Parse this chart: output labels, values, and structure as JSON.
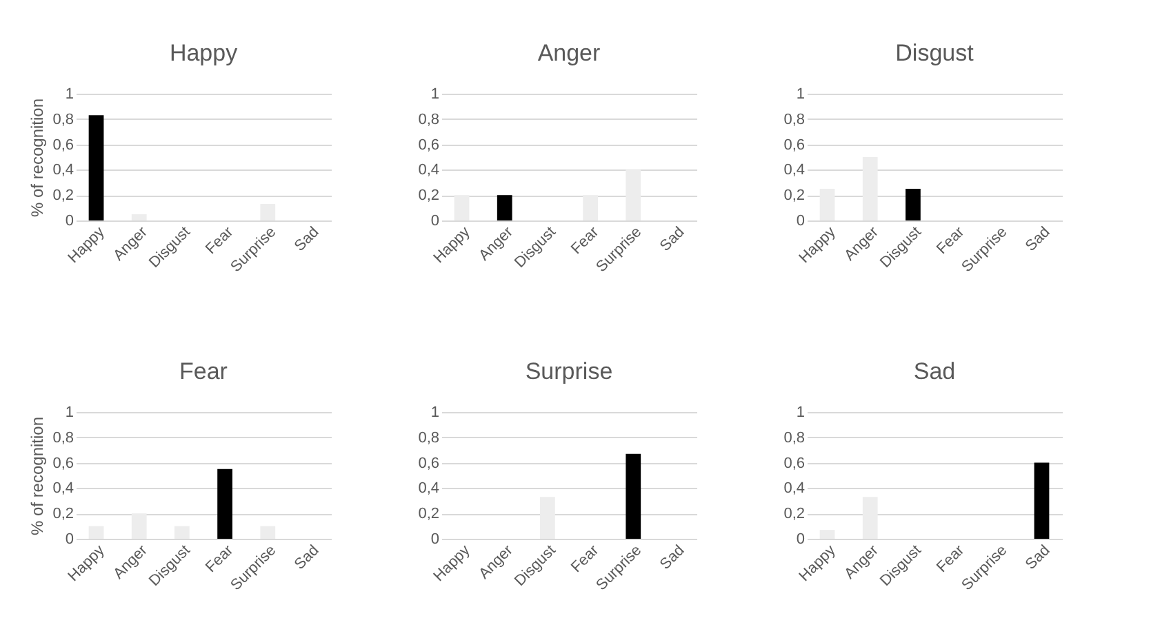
{
  "chart_data": [
    {
      "type": "bar",
      "title": "Happy",
      "ylabel": "% of recognition",
      "categories": [
        "Happy",
        "Anger",
        "Disgust",
        "Fear",
        "Surprise",
        "Sad"
      ],
      "values": [
        0.83,
        0.05,
        0,
        0,
        0.13,
        0
      ],
      "colors": [
        "#000000",
        "#ededed",
        "#ededed",
        "#ededed",
        "#ededed",
        "#ededed"
      ],
      "ylim": [
        0,
        1
      ],
      "yticks": [
        {
          "value": 0,
          "label": "0"
        },
        {
          "value": 0.2,
          "label": "0,2"
        },
        {
          "value": 0.4,
          "label": "0,4"
        },
        {
          "value": 0.6,
          "label": "0,6"
        },
        {
          "value": 0.8,
          "label": "0,8"
        },
        {
          "value": 1,
          "label": "1"
        }
      ],
      "grid": "y"
    },
    {
      "type": "bar",
      "title": "Anger",
      "categories": [
        "Happy",
        "Anger",
        "Disgust",
        "Fear",
        "Surprise",
        "Sad"
      ],
      "values": [
        0.2,
        0.2,
        0,
        0.2,
        0.4,
        0
      ],
      "colors": [
        "#ededed",
        "#000000",
        "#ededed",
        "#ededed",
        "#ededed",
        "#ededed"
      ],
      "ylim": [
        0,
        1
      ],
      "yticks": [
        {
          "value": 0,
          "label": "0"
        },
        {
          "value": 0.2,
          "label": "0,2"
        },
        {
          "value": 0.4,
          "label": "0,4"
        },
        {
          "value": 0.6,
          "label": "0,6"
        },
        {
          "value": 0.8,
          "label": "0,8"
        },
        {
          "value": 1,
          "label": "1"
        }
      ],
      "grid": "y"
    },
    {
      "type": "bar",
      "title": "Disgust",
      "categories": [
        "Happy",
        "Anger",
        "Disgust",
        "Fear",
        "Surprise",
        "Sad"
      ],
      "values": [
        0.25,
        0.5,
        0.25,
        0,
        0,
        0
      ],
      "colors": [
        "#ededed",
        "#ededed",
        "#000000",
        "#ededed",
        "#ededed",
        "#ededed"
      ],
      "ylim": [
        0,
        1
      ],
      "yticks": [
        {
          "value": 0,
          "label": "0"
        },
        {
          "value": 0.2,
          "label": "0,2"
        },
        {
          "value": 0.4,
          "label": "0,4"
        },
        {
          "value": 0.6,
          "label": "0,6"
        },
        {
          "value": 0.8,
          "label": "0,8"
        },
        {
          "value": 1,
          "label": "1"
        }
      ],
      "grid": "y"
    },
    {
      "type": "bar",
      "title": "Fear",
      "ylabel": "% of recognition",
      "categories": [
        "Happy",
        "Anger",
        "Disgust",
        "Fear",
        "Surprise",
        "Sad"
      ],
      "values": [
        0.1,
        0.2,
        0.1,
        0.55,
        0.1,
        0
      ],
      "colors": [
        "#ededed",
        "#ededed",
        "#ededed",
        "#000000",
        "#ededed",
        "#ededed"
      ],
      "ylim": [
        0,
        1
      ],
      "yticks": [
        {
          "value": 0,
          "label": "0"
        },
        {
          "value": 0.2,
          "label": "0,2"
        },
        {
          "value": 0.4,
          "label": "0,4"
        },
        {
          "value": 0.6,
          "label": "0,6"
        },
        {
          "value": 0.8,
          "label": "0,8"
        },
        {
          "value": 1,
          "label": "1"
        }
      ],
      "grid": "y"
    },
    {
      "type": "bar",
      "title": "Surprise",
      "categories": [
        "Happy",
        "Anger",
        "Disgust",
        "Fear",
        "Surprise",
        "Sad"
      ],
      "values": [
        0,
        0,
        0.33,
        0,
        0.67,
        0
      ],
      "colors": [
        "#ededed",
        "#ededed",
        "#ededed",
        "#ededed",
        "#000000",
        "#ededed"
      ],
      "ylim": [
        0,
        1
      ],
      "yticks": [
        {
          "value": 0,
          "label": "0"
        },
        {
          "value": 0.2,
          "label": "0,2"
        },
        {
          "value": 0.4,
          "label": "0,4"
        },
        {
          "value": 0.6,
          "label": "0,6"
        },
        {
          "value": 0.8,
          "label": "0,8"
        },
        {
          "value": 1,
          "label": "1"
        }
      ],
      "grid": "y"
    },
    {
      "type": "bar",
      "title": "Sad",
      "categories": [
        "Happy",
        "Anger",
        "Disgust",
        "Fear",
        "Surprise",
        "Sad"
      ],
      "values": [
        0.07,
        0.33,
        0,
        0,
        0,
        0.6
      ],
      "colors": [
        "#ededed",
        "#ededed",
        "#ededed",
        "#ededed",
        "#ededed",
        "#000000"
      ],
      "ylim": [
        0,
        1
      ],
      "yticks": [
        {
          "value": 0,
          "label": "0"
        },
        {
          "value": 0.2,
          "label": "0,2"
        },
        {
          "value": 0.4,
          "label": "0,4"
        },
        {
          "value": 0.6,
          "label": "0,6"
        },
        {
          "value": 0.8,
          "label": "0,8"
        },
        {
          "value": 1,
          "label": "1"
        }
      ],
      "grid": "y"
    }
  ]
}
